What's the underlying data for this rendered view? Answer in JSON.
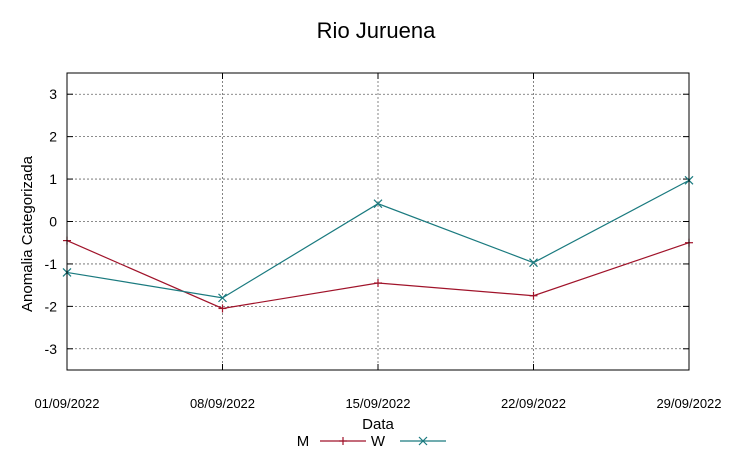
{
  "chart_data": {
    "type": "line",
    "title": "Rio Juruena",
    "xlabel": "Data",
    "ylabel": "Anomalia Categorizada",
    "categories": [
      "01/09/2022",
      "08/09/2022",
      "15/09/2022",
      "22/09/2022",
      "29/09/2022"
    ],
    "ylim": [
      -3.5,
      3.5
    ],
    "yticks": [
      3,
      2,
      1,
      0,
      -1,
      -2,
      -3
    ],
    "grid": true,
    "legend_position": "bottom-center",
    "series": [
      {
        "name": "M",
        "values": [
          -0.45,
          -2.05,
          -1.45,
          -1.75,
          -0.5
        ],
        "color": "#a0132a",
        "marker": "plus"
      },
      {
        "name": "W",
        "values": [
          -1.2,
          -1.8,
          0.42,
          -0.97,
          0.97
        ],
        "color": "#1a7a7f",
        "marker": "cross"
      }
    ]
  }
}
